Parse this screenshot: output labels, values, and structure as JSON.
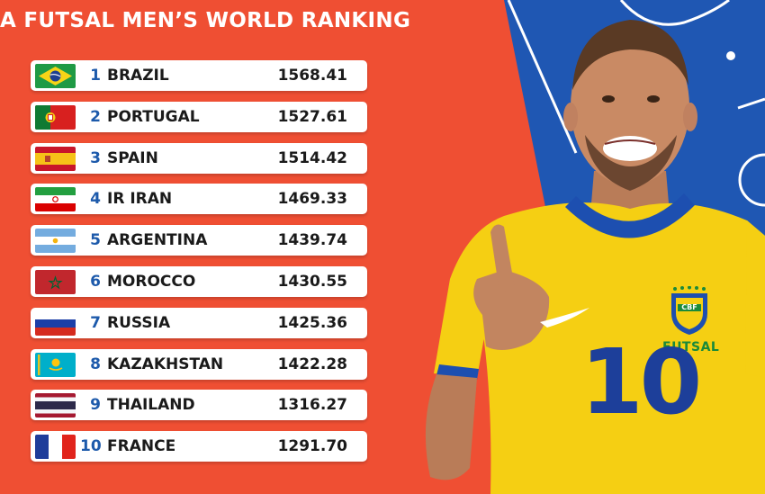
{
  "title": "A FUTSAL MEN’S WORLD RANKING",
  "colors": {
    "background": "#ef4f33",
    "pitch_blue": "#1f57b3",
    "rank_blue": "#1d5aab",
    "jersey_yellow": "#f5cf13",
    "jersey_trim": "#1d4fb0"
  },
  "rankings": [
    {
      "rank": "1",
      "country": "BRAZIL",
      "points": "1568.41",
      "flag": "brazil-flag-icon"
    },
    {
      "rank": "2",
      "country": "PORTUGAL",
      "points": "1527.61",
      "flag": "portugal-flag-icon"
    },
    {
      "rank": "3",
      "country": "SPAIN",
      "points": "1514.42",
      "flag": "spain-flag-icon"
    },
    {
      "rank": "4",
      "country": "IR IRAN",
      "points": "1469.33",
      "flag": "iran-flag-icon"
    },
    {
      "rank": "5",
      "country": "ARGENTINA",
      "points": "1439.74",
      "flag": "argentina-flag-icon"
    },
    {
      "rank": "6",
      "country": "MOROCCO",
      "points": "1430.55",
      "flag": "morocco-flag-icon"
    },
    {
      "rank": "7",
      "country": "RUSSIA",
      "points": "1425.36",
      "flag": "russia-flag-icon"
    },
    {
      "rank": "8",
      "country": "KAZAKHSTAN",
      "points": "1422.28",
      "flag": "kazakhstan-flag-icon"
    },
    {
      "rank": "9",
      "country": "THAILAND",
      "points": "1316.27",
      "flag": "thailand-flag-icon"
    },
    {
      "rank": "10",
      "country": "FRANCE",
      "points": "1291.70",
      "flag": "france-flag-icon"
    }
  ],
  "player": {
    "jersey_number": "10",
    "crest_text": "CBF",
    "chest_text": "FUTSAL"
  }
}
